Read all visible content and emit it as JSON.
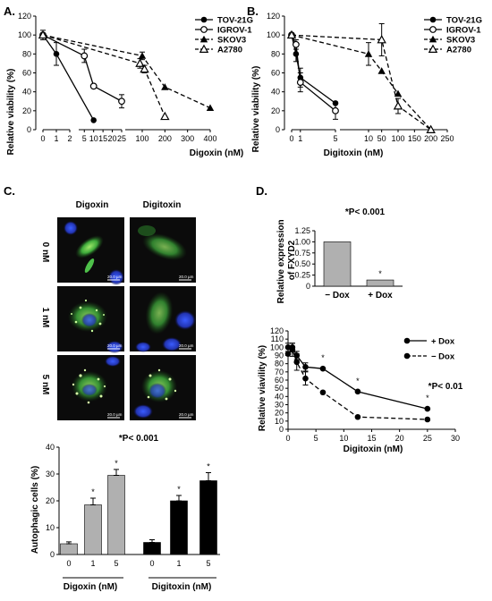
{
  "panels": {
    "A": "A.",
    "B": "B.",
    "C": "C.",
    "D": "D."
  },
  "micrograph": {
    "col_headers": [
      "Digoxin",
      "Digitoxin"
    ],
    "row_labels": [
      "0 nM",
      "1 nM",
      "5 nM"
    ],
    "scale_bar": "20.0 µm"
  },
  "chart_data": [
    {
      "id": "A",
      "type": "line",
      "xlabel": "Digoxin (nM)",
      "ylabel": "Relative viability (%)",
      "ylim": [
        0,
        120
      ],
      "broken_x_axis": true,
      "xticks": [
        "0",
        "1",
        "2",
        "5",
        "10",
        "15",
        "20",
        "25",
        "100",
        "200",
        "300",
        "400"
      ],
      "yticks": [
        "0",
        "20",
        "40",
        "60",
        "80",
        "100",
        "120"
      ],
      "legend_position": "top-right",
      "series": [
        {
          "name": "TOV-21G",
          "marker": "filled-circle",
          "line": "solid",
          "x": [
            0,
            1,
            10
          ],
          "y": [
            100,
            80,
            10
          ],
          "err": [
            5,
            12,
            0
          ]
        },
        {
          "name": "IGROV-1",
          "marker": "open-circle",
          "line": "solid",
          "x": [
            0,
            5,
            10,
            25
          ],
          "y": [
            100,
            78,
            46,
            30
          ],
          "err": [
            0,
            7,
            0,
            7
          ]
        },
        {
          "name": "SKOV3",
          "marker": "filled-triangle",
          "line": "dashed",
          "x": [
            0,
            100,
            200,
            400
          ],
          "y": [
            100,
            78,
            45,
            23
          ],
          "err": [
            0,
            4,
            0,
            0
          ]
        },
        {
          "name": "A2780",
          "marker": "open-triangle",
          "line": "dashed",
          "x": [
            0,
            90,
            110,
            200
          ],
          "y": [
            100,
            70,
            64,
            14
          ],
          "err": [
            0,
            5,
            4,
            0
          ]
        }
      ]
    },
    {
      "id": "B",
      "type": "line",
      "xlabel": "Digitoxin (nM)",
      "ylabel": "Relative viability (%)",
      "ylim": [
        0,
        120
      ],
      "broken_x_axis": true,
      "xticks": [
        "0",
        "1",
        "5",
        "10",
        "50",
        "100",
        "150",
        "200",
        "250"
      ],
      "yticks": [
        "0",
        "20",
        "40",
        "60",
        "80",
        "100",
        "120"
      ],
      "legend_position": "top-right",
      "series": [
        {
          "name": "TOV-21G",
          "marker": "filled-circle",
          "line": "solid",
          "x": [
            0,
            0.5,
            1,
            5
          ],
          "y": [
            100,
            80,
            55,
            28
          ],
          "err": [
            0,
            8,
            10,
            0
          ]
        },
        {
          "name": "IGROV-1",
          "marker": "open-circle",
          "line": "solid",
          "x": [
            0,
            0.5,
            1,
            5
          ],
          "y": [
            100,
            90,
            50,
            20
          ],
          "err": [
            0,
            5,
            10,
            9
          ]
        },
        {
          "name": "SKOV3",
          "marker": "filled-triangle",
          "line": "dashed",
          "x": [
            0,
            10,
            50,
            100,
            200
          ],
          "y": [
            100,
            80,
            62,
            38,
            0
          ],
          "err": [
            0,
            12,
            0,
            0,
            0
          ]
        },
        {
          "name": "A2780",
          "marker": "open-triangle",
          "line": "dashed",
          "x": [
            0,
            50,
            100,
            200
          ],
          "y": [
            100,
            95,
            25,
            0
          ],
          "err": [
            0,
            17,
            8,
            0
          ]
        }
      ]
    },
    {
      "id": "C-bar",
      "type": "bar",
      "ylabel": "Autophagic cells (%)",
      "ylim": [
        0,
        40
      ],
      "yticks": [
        "0",
        "10",
        "20",
        "30",
        "40"
      ],
      "annotation": "*P< 0.001",
      "categories": [
        "0",
        "1",
        "5",
        "0",
        "1",
        "5"
      ],
      "groups": [
        "Digoxin (nM)",
        "Digitoxin (nM)"
      ],
      "values": [
        4,
        18.5,
        29.5,
        4.5,
        20,
        27.5
      ],
      "errors": [
        0.7,
        2.5,
        2.2,
        1,
        2,
        3
      ],
      "colors": [
        "#b0b0b0",
        "#b0b0b0",
        "#b0b0b0",
        "#000000",
        "#000000",
        "#000000"
      ],
      "significant": [
        false,
        true,
        true,
        false,
        true,
        true
      ]
    },
    {
      "id": "D-bar",
      "type": "bar",
      "ylabel": "Relative expression of FXYD2",
      "ylim": [
        0,
        1.25
      ],
      "yticks": [
        "0",
        "0.25",
        "0.50",
        "0.75",
        "1.00",
        "1.25"
      ],
      "annotation": "*P< 0.001",
      "categories": [
        "− Dox",
        "+ Dox"
      ],
      "values": [
        1.0,
        0.14
      ],
      "errors": [
        0.01,
        0.01
      ],
      "colors": [
        "#b0b0b0",
        "#b0b0b0"
      ],
      "significant": [
        false,
        true
      ]
    },
    {
      "id": "D-line",
      "type": "line",
      "xlabel": "Digitoxin (nM)",
      "ylabel": "Relative viavility (%)",
      "xlim": [
        0,
        30
      ],
      "ylim": [
        0,
        120
      ],
      "xticks": [
        "0",
        "5",
        "10",
        "15",
        "20",
        "25",
        "30"
      ],
      "yticks": [
        "0",
        "10",
        "20",
        "30",
        "40",
        "50",
        "60",
        "70",
        "80",
        "90",
        "100",
        "110",
        "120"
      ],
      "annotation": "*P< 0.01",
      "legend_position": "top-right",
      "series": [
        {
          "name": "+ Dox",
          "line": "solid",
          "x": [
            0,
            0.78,
            1.56,
            3.125,
            6.25,
            12.5,
            25
          ],
          "y": [
            100,
            100,
            90,
            76,
            74,
            46,
            25
          ],
          "err": [
            5,
            5,
            5,
            5,
            0,
            0,
            0
          ]
        },
        {
          "name": "− Dox",
          "line": "dashed",
          "x": [
            0,
            0.78,
            1.56,
            3.125,
            6.25,
            12.5,
            25
          ],
          "y": [
            92,
            97,
            82,
            62,
            45,
            15,
            12
          ],
          "err": [
            0,
            8,
            10,
            8,
            0,
            0,
            0
          ]
        }
      ],
      "significant_x": [
        6.25,
        12.5,
        25
      ]
    }
  ]
}
